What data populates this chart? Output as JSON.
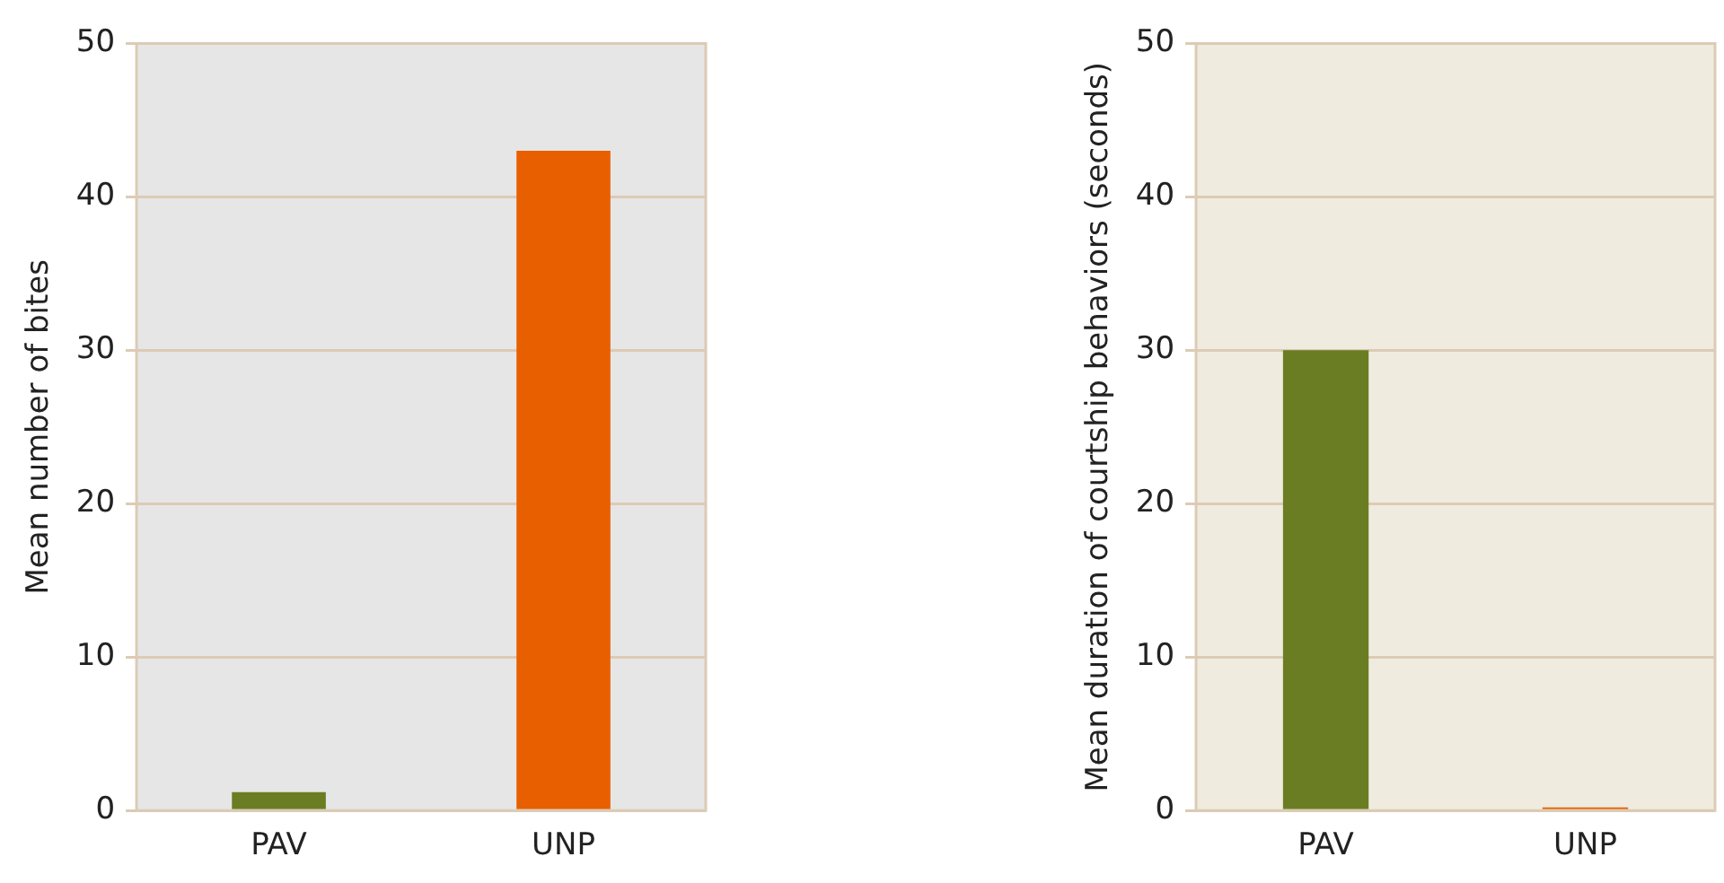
{
  "chart_data": [
    {
      "type": "bar",
      "categories": [
        "PAV",
        "UNP"
      ],
      "values": [
        1.2,
        43
      ],
      "colors": [
        "#6b7d23",
        "#e85f00"
      ],
      "ylabel": "Mean number of bites",
      "ylim": [
        0,
        50
      ],
      "yticks": [
        0,
        10,
        20,
        30,
        40,
        50
      ],
      "grid": "y"
    },
    {
      "type": "bar",
      "categories": [
        "PAV",
        "UNP"
      ],
      "values": [
        30,
        0.2
      ],
      "colors": [
        "#6b7d23",
        "#e85f00"
      ],
      "ylabel": "Mean duration of courtship behaviors (seconds)",
      "ylim": [
        0,
        50
      ],
      "yticks": [
        0,
        10,
        20,
        30,
        40,
        50
      ],
      "grid": "y"
    }
  ]
}
